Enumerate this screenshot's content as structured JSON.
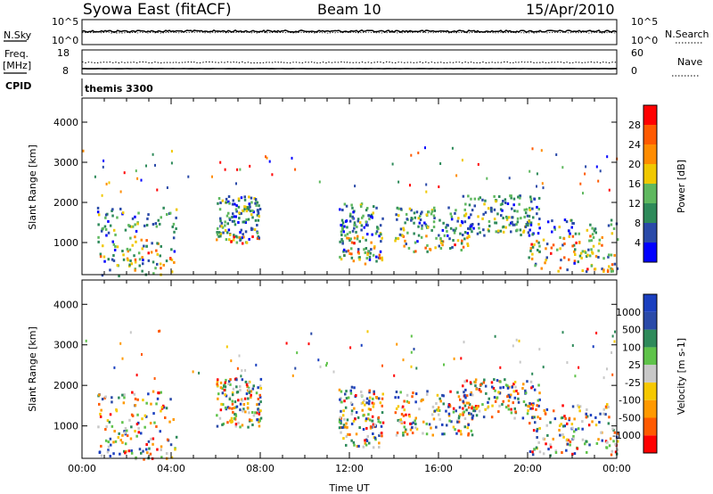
{
  "header": {
    "station": "Syowa East (fitACF)",
    "beam": "Beam 10",
    "date": "15/Apr/2010"
  },
  "summary_panels": {
    "noise": {
      "left_label": "N.Sky",
      "right_label": "N.Search",
      "left_ticks": [
        "10^5",
        "10^0"
      ],
      "right_ticks": [
        "10^5",
        "10^0"
      ]
    },
    "frequency": {
      "left_label_top": "Freq.",
      "left_label_unit": "[MHz]",
      "right_label": "Nave",
      "left_ticks": [
        "18",
        "8"
      ],
      "right_ticks": [
        "60",
        "0"
      ]
    },
    "cpid": {
      "label": "CPID",
      "value": "themis 3300"
    }
  },
  "colors": {
    "power": [
      "#0000ff",
      "#2a4aa8",
      "#2e8a5a",
      "#5fb85f",
      "#f0c800",
      "#ff8c00",
      "#ff5a00",
      "#ff0000"
    ],
    "velocity": [
      "#ff0000",
      "#ff5a00",
      "#ff9900",
      "#f5c800",
      "#c8c8c8",
      "#5fc34a",
      "#2e8a5a",
      "#2a4aa8",
      "#1a3fbf"
    ]
  },
  "chart_data": [
    {
      "type": "heatmap",
      "title": "",
      "xlabel": "Time UT",
      "ylabel": "Slant Range [km]",
      "x_ticks": [
        "00:00",
        "04:00",
        "08:00",
        "12:00",
        "16:00",
        "20:00",
        "00:00"
      ],
      "y_ticks": [
        1000,
        2000,
        3000,
        4000
      ],
      "ylim": [
        200,
        4600
      ],
      "colorbar": {
        "label": "Power [dB]",
        "tick_labels": [
          "4",
          "8",
          "12",
          "16",
          "20",
          "24",
          "28"
        ]
      },
      "scatter_regions": [
        {
          "t_start": 0.6,
          "t_end": 4.2,
          "r_min": 200,
          "r_max": 1900
        },
        {
          "t_start": 6.0,
          "t_end": 8.0,
          "r_min": 1000,
          "r_max": 2200
        },
        {
          "t_start": 11.5,
          "t_end": 13.5,
          "r_min": 500,
          "r_max": 2000
        },
        {
          "t_start": 14.0,
          "t_end": 17.5,
          "r_min": 800,
          "r_max": 1900
        },
        {
          "t_start": 17.0,
          "t_end": 20.5,
          "r_min": 1200,
          "r_max": 2200
        },
        {
          "t_start": 20.0,
          "t_end": 24.0,
          "r_min": 300,
          "r_max": 1600
        }
      ]
    },
    {
      "type": "heatmap",
      "title": "",
      "xlabel": "Time UT",
      "ylabel": "Slant Range [km]",
      "x_ticks": [
        "00:00",
        "04:00",
        "08:00",
        "12:00",
        "16:00",
        "20:00",
        "00:00"
      ],
      "y_ticks": [
        1000,
        2000,
        3000,
        4000
      ],
      "ylim": [
        200,
        4600
      ],
      "colorbar": {
        "label": "Velocity [m s-1]",
        "tick_labels": [
          "1000",
          "500",
          "100",
          "25",
          "-25",
          "-100",
          "-500",
          "-1000"
        ]
      },
      "scatter_regions": [
        {
          "t_start": 0.6,
          "t_end": 4.2,
          "r_min": 200,
          "r_max": 1900
        },
        {
          "t_start": 6.0,
          "t_end": 8.0,
          "r_min": 1000,
          "r_max": 2200
        },
        {
          "t_start": 11.5,
          "t_end": 13.5,
          "r_min": 500,
          "r_max": 2000
        },
        {
          "t_start": 14.0,
          "t_end": 17.5,
          "r_min": 800,
          "r_max": 1900
        },
        {
          "t_start": 17.0,
          "t_end": 20.5,
          "r_min": 1200,
          "r_max": 2200
        },
        {
          "t_start": 20.0,
          "t_end": 24.0,
          "r_min": 300,
          "r_max": 1600
        }
      ]
    }
  ]
}
